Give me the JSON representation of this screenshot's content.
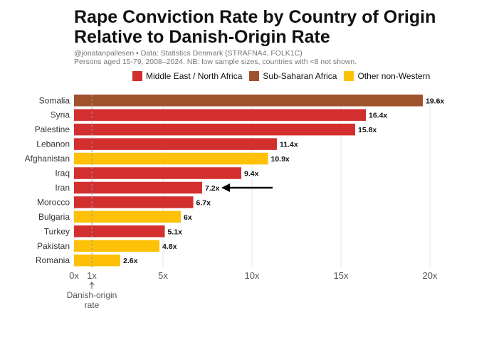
{
  "chart_data": {
    "type": "bar",
    "orientation": "horizontal",
    "title_lines": [
      "Rape Conviction Rate by Country of Origin",
      "Relative to Danish-Origin Rate"
    ],
    "subtitle_lines": [
      "@jonatanpallesen • Data: Statistics Denmark (STRAFNA4, FOLK1C)",
      "Persons aged 15-79, 2008–2024. NB: low sample sizes, countries with <8 not shown."
    ],
    "legend": [
      {
        "name": "Middle East / North Africa",
        "color": "#D32F2F"
      },
      {
        "name": "Sub-Saharan Africa",
        "color": "#A0522D"
      },
      {
        "name": "Other non-Western",
        "color": "#FFC107"
      }
    ],
    "legend_position": "top",
    "categories": [
      "Somalia",
      "Syria",
      "Palestine",
      "Lebanon",
      "Afghanistan",
      "Iraq",
      "Iran",
      "Morocco",
      "Bulgaria",
      "Turkey",
      "Pakistan",
      "Romania"
    ],
    "values": [
      19.6,
      16.4,
      15.8,
      11.4,
      10.9,
      9.4,
      7.2,
      6.7,
      6.0,
      5.1,
      4.8,
      2.6
    ],
    "value_labels": [
      "19.6x",
      "16.4x",
      "15.8x",
      "11.4x",
      "10.9x",
      "9.4x",
      "7.2x",
      "6.7x",
      "6x",
      "5.1x",
      "4.8x",
      "2.6x"
    ],
    "groups": [
      "Sub-Saharan Africa",
      "Middle East / North Africa",
      "Middle East / North Africa",
      "Middle East / North Africa",
      "Other non-Western",
      "Middle East / North Africa",
      "Middle East / North Africa",
      "Middle East / North Africa",
      "Other non-Western",
      "Middle East / North Africa",
      "Other non-Western",
      "Other non-Western"
    ],
    "xlim": [
      0,
      20
    ],
    "xticks": [
      0,
      1,
      5,
      10,
      15,
      20
    ],
    "xtick_labels": [
      "0x",
      "1x",
      "5x",
      "10x",
      "15x",
      "20x"
    ],
    "gridlines": true,
    "reference_line": {
      "value": 1,
      "label_lines": [
        "Danish-origin",
        "rate"
      ]
    },
    "highlighted_category": "Iran"
  }
}
